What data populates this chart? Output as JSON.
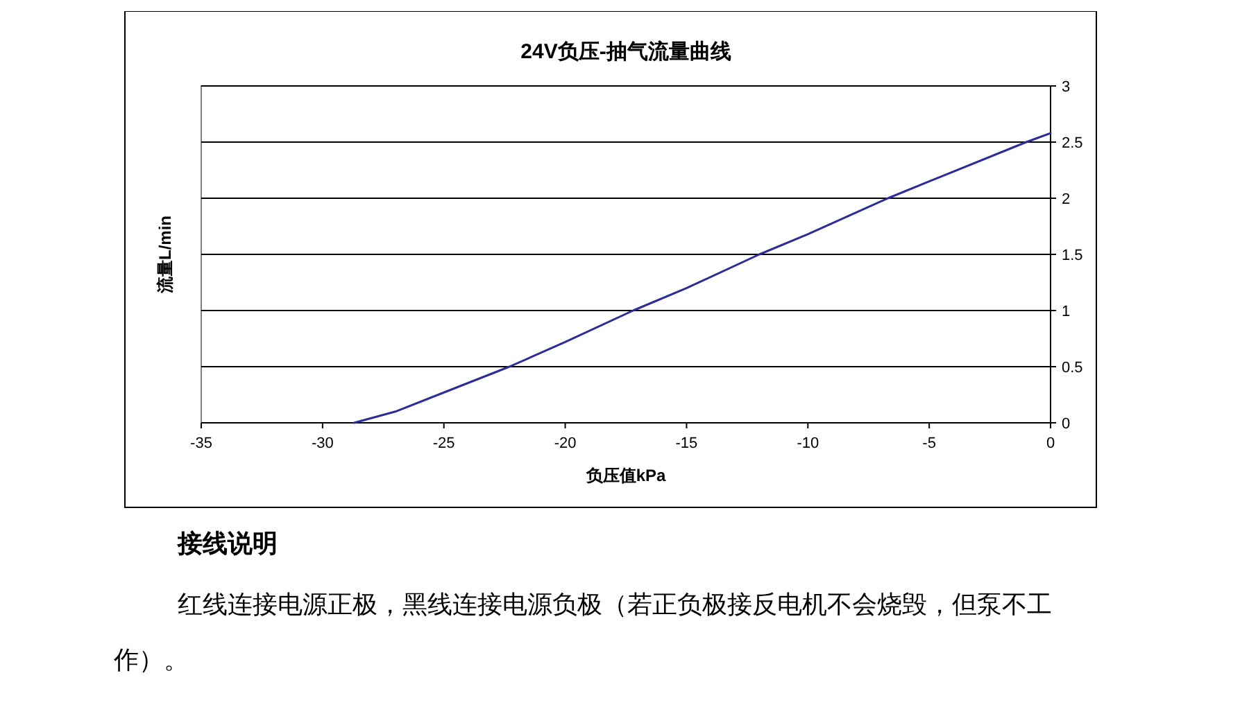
{
  "chart_data": {
    "type": "line",
    "title": "24V负压-抽气流量曲线",
    "xlabel": "负压值kPa",
    "ylabel": "流量L/min",
    "x": [
      -28.7,
      -27,
      -25,
      -22.3,
      -20,
      -17.2,
      -15,
      -12,
      -10,
      -6.7,
      -5,
      -1,
      0
    ],
    "series": [
      {
        "color": "#2b2b9a",
        "values": [
          0,
          0.1,
          0.27,
          0.5,
          0.72,
          1.0,
          1.2,
          1.5,
          1.68,
          2.0,
          2.15,
          2.5,
          2.58
        ]
      }
    ],
    "xlim": [
      -35,
      0
    ],
    "xticks": [
      -35,
      -30,
      -25,
      -20,
      -15,
      -10,
      -5,
      0
    ],
    "ylim": [
      0,
      3
    ],
    "yticks": [
      0,
      0.5,
      1,
      1.5,
      2,
      2.5,
      3
    ],
    "grid": "y",
    "marker": "none",
    "line_style": "solid",
    "annotations": [
      "接线说明",
      "红线连接电源正极，黑线连接电源负极（若正负极接反电机不会烧毁，但泵不工作）。"
    ]
  }
}
